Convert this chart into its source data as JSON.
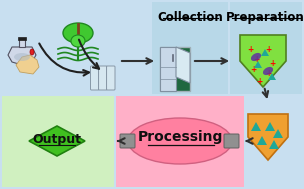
{
  "bg_color": "#c8dff0",
  "panel_top_left_color": "#c8dff0",
  "panel_top_mid_color": "#b8d8e8",
  "panel_top_right_color": "#b8d8e8",
  "panel_bot_left_color": "#d0f0c0",
  "panel_bot_mid_color": "#ffb0c8",
  "panel_bot_right_color": "#c8dff0",
  "collection_label": "Collection",
  "preparation_label": "Preparation",
  "processing_label": "Processing",
  "output_label": "Output",
  "shield_green_color": "#80e040",
  "shield_orange_color": "#f0a030",
  "diamond_green_color": "#40c020",
  "ellipse_pink_color": "#ff80a0",
  "fridge_bg": "#206840",
  "arrow_color": "#303030",
  "label_color": "#000000",
  "plus_color": "#ff0000",
  "triangle_teal": "#20a898",
  "blob_purple": "#6030a0",
  "flask_color": "#d0d8e8",
  "hand_color": "#f0d090",
  "tube_color": "#d8e8f0",
  "grey_connector": "#909090"
}
